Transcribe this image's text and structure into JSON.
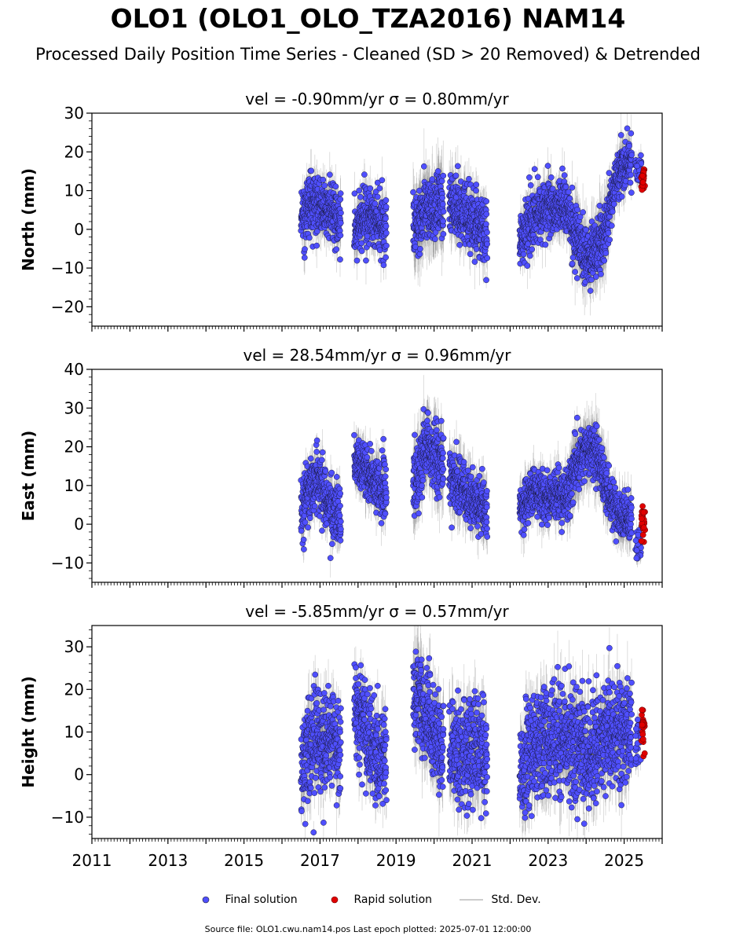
{
  "title": "OLO1 (OLO1_OLO_TZA2016) NAM14",
  "subtitle": "Processed Daily Position Time Series - Cleaned (SD > 20 Removed) & Detrended",
  "legend": {
    "final": "Final solution",
    "rapid": "Rapid solution",
    "std": "Std. Dev."
  },
  "source_note": "Source file: OLO1.cwu.nam14.pos  Last epoch plotted: 2025-07-01 12:00:00",
  "colors": {
    "final": "#4f4fff",
    "rapid": "#e00000",
    "std_dev": "#777777"
  },
  "chart_data": [
    {
      "type": "scatter",
      "panel": "north",
      "title": "vel = -0.90mm/yr   σ = 0.80mm/yr",
      "ylabel": "North (mm)",
      "xlim": [
        2011,
        2026
      ],
      "ylim": [
        -25,
        30
      ],
      "y_ticks": [
        -20,
        -10,
        0,
        10,
        20,
        30
      ],
      "y_tick_labels": [
        "−20",
        "−10",
        "0",
        "10",
        "20",
        "30"
      ],
      "x_ticks": [
        2011,
        2013,
        2015,
        2017,
        2019,
        2021,
        2023,
        2025
      ],
      "segments": [
        {
          "start": 2016.5,
          "end": 2017.55,
          "profile": [
            [
              2016.5,
              3
            ],
            [
              2016.9,
              7
            ],
            [
              2017.2,
              5
            ],
            [
              2017.55,
              2
            ]
          ],
          "noise": 4,
          "err": 5
        },
        {
          "start": 2017.9,
          "end": 2018.75,
          "profile": [
            [
              2017.9,
              0
            ],
            [
              2018.2,
              3
            ],
            [
              2018.5,
              2
            ],
            [
              2018.75,
              1
            ]
          ],
          "noise": 4,
          "err": 5
        },
        {
          "start": 2019.45,
          "end": 2020.25,
          "profile": [
            [
              2019.45,
              0
            ],
            [
              2019.8,
              6
            ],
            [
              2020.25,
              5
            ]
          ],
          "noise": 4.5,
          "err": 8
        },
        {
          "start": 2020.4,
          "end": 2021.4,
          "profile": [
            [
              2020.4,
              6
            ],
            [
              2020.9,
              3
            ],
            [
              2021.4,
              0
            ]
          ],
          "noise": 4,
          "err": 6
        },
        {
          "start": 2022.25,
          "end": 2023.6,
          "profile": [
            [
              2022.25,
              -3
            ],
            [
              2022.6,
              3
            ],
            [
              2023.0,
              6
            ],
            [
              2023.6,
              4
            ]
          ],
          "noise": 3.5,
          "err": 5
        },
        {
          "start": 2023.6,
          "end": 2024.6,
          "profile": [
            [
              2023.6,
              2
            ],
            [
              2024.0,
              -8
            ],
            [
              2024.3,
              -5
            ],
            [
              2024.6,
              3
            ]
          ],
          "noise": 4,
          "err": 7
        },
        {
          "start": 2024.6,
          "end": 2025.2,
          "profile": [
            [
              2024.6,
              5
            ],
            [
              2024.9,
              16
            ],
            [
              2025.2,
              18
            ]
          ],
          "noise": 3.5,
          "err": 5
        }
      ],
      "rapid": {
        "start": 2025.45,
        "end": 2025.55,
        "center": 12.5,
        "spread": 2.5
      },
      "final_tail": {
        "start": 2025.3,
        "end": 2025.45,
        "center": 16,
        "spread": 2
      }
    },
    {
      "type": "scatter",
      "panel": "east",
      "title": "vel = 28.54mm/yr   σ = 0.96mm/yr",
      "ylabel": "East (mm)",
      "xlim": [
        2011,
        2026
      ],
      "ylim": [
        -15,
        40
      ],
      "y_ticks": [
        -10,
        0,
        10,
        20,
        30,
        40
      ],
      "y_tick_labels": [
        "−10",
        "0",
        "10",
        "20",
        "30",
        "40"
      ],
      "x_ticks": [
        2011,
        2013,
        2015,
        2017,
        2019,
        2021,
        2023,
        2025
      ],
      "segments": [
        {
          "start": 2016.5,
          "end": 2017.55,
          "profile": [
            [
              2016.5,
              3
            ],
            [
              2016.9,
              13
            ],
            [
              2017.2,
              6
            ],
            [
              2017.55,
              0
            ]
          ],
          "noise": 4,
          "err": 5
        },
        {
          "start": 2017.9,
          "end": 2018.75,
          "profile": [
            [
              2017.9,
              17
            ],
            [
              2018.2,
              14
            ],
            [
              2018.5,
              10
            ],
            [
              2018.75,
              8
            ]
          ],
          "noise": 3.5,
          "err": 5
        },
        {
          "start": 2019.45,
          "end": 2020.25,
          "profile": [
            [
              2019.45,
              10
            ],
            [
              2019.8,
              21
            ],
            [
              2020.25,
              15
            ]
          ],
          "noise": 4.5,
          "err": 8
        },
        {
          "start": 2020.4,
          "end": 2021.4,
          "profile": [
            [
              2020.4,
              13
            ],
            [
              2020.9,
              8
            ],
            [
              2021.4,
              3
            ]
          ],
          "noise": 3.5,
          "err": 6
        },
        {
          "start": 2022.25,
          "end": 2023.6,
          "profile": [
            [
              2022.25,
              3
            ],
            [
              2022.6,
              9
            ],
            [
              2023.0,
              7
            ],
            [
              2023.6,
              8
            ]
          ],
          "noise": 3,
          "err": 5
        },
        {
          "start": 2023.6,
          "end": 2024.6,
          "profile": [
            [
              2023.6,
              12
            ],
            [
              2024.0,
              20
            ],
            [
              2024.3,
              18
            ],
            [
              2024.6,
              8
            ]
          ],
          "noise": 3.5,
          "err": 7
        },
        {
          "start": 2024.6,
          "end": 2025.2,
          "profile": [
            [
              2024.6,
              6
            ],
            [
              2024.9,
              2
            ],
            [
              2025.2,
              0
            ]
          ],
          "noise": 3,
          "err": 5
        }
      ],
      "rapid": {
        "start": 2025.45,
        "end": 2025.55,
        "center": -0.5,
        "spread": 2.5
      },
      "final_tail": {
        "start": 2025.3,
        "end": 2025.45,
        "center": -5,
        "spread": 2
      }
    },
    {
      "type": "scatter",
      "panel": "height",
      "title": "vel = -5.85mm/yr   σ = 0.57mm/yr",
      "ylabel": "Height (mm)",
      "xlim": [
        2011,
        2026
      ],
      "ylim": [
        -15,
        35
      ],
      "y_ticks": [
        -10,
        0,
        10,
        20,
        30
      ],
      "y_tick_labels": [
        "−10",
        "0",
        "10",
        "20",
        "30"
      ],
      "x_ticks": [
        2011,
        2013,
        2015,
        2017,
        2019,
        2021,
        2023,
        2025
      ],
      "x_tick_labels": [
        "2011",
        "2013",
        "2015",
        "2017",
        "2019",
        "2021",
        "2023",
        "2025"
      ],
      "segments": [
        {
          "start": 2016.5,
          "end": 2017.55,
          "profile": [
            [
              2016.5,
              2
            ],
            [
              2016.9,
              10
            ],
            [
              2017.2,
              8
            ],
            [
              2017.55,
              5
            ]
          ],
          "noise": 5.5,
          "err": 6
        },
        {
          "start": 2017.9,
          "end": 2018.75,
          "profile": [
            [
              2017.9,
              17
            ],
            [
              2018.2,
              10
            ],
            [
              2018.5,
              4
            ],
            [
              2018.75,
              5
            ]
          ],
          "noise": 5.5,
          "err": 6
        },
        {
          "start": 2019.45,
          "end": 2020.25,
          "profile": [
            [
              2019.45,
              22
            ],
            [
              2019.8,
              14
            ],
            [
              2020.25,
              5
            ]
          ],
          "noise": 5.5,
          "err": 8
        },
        {
          "start": 2020.4,
          "end": 2021.4,
          "profile": [
            [
              2020.4,
              5
            ],
            [
              2020.9,
              6
            ],
            [
              2021.4,
              4
            ]
          ],
          "noise": 6,
          "err": 7
        },
        {
          "start": 2022.25,
          "end": 2023.6,
          "profile": [
            [
              2022.25,
              0
            ],
            [
              2022.6,
              6
            ],
            [
              2023.0,
              9
            ],
            [
              2023.6,
              8
            ]
          ],
          "noise": 6.5,
          "err": 7
        },
        {
          "start": 2023.6,
          "end": 2024.6,
          "profile": [
            [
              2023.6,
              8
            ],
            [
              2024.0,
              5
            ],
            [
              2024.3,
              7
            ],
            [
              2024.6,
              9
            ]
          ],
          "noise": 6.5,
          "err": 7
        },
        {
          "start": 2024.6,
          "end": 2025.2,
          "profile": [
            [
              2024.6,
              9
            ],
            [
              2024.9,
              10
            ],
            [
              2025.2,
              9
            ]
          ],
          "noise": 6,
          "err": 7
        }
      ],
      "rapid": {
        "start": 2025.45,
        "end": 2025.55,
        "center": 10.5,
        "spread": 2.5
      },
      "final_tail": {
        "start": 2025.3,
        "end": 2025.45,
        "center": 9,
        "spread": 3
      }
    }
  ]
}
